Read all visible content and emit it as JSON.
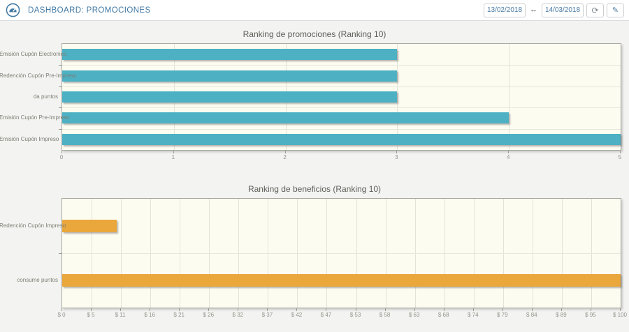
{
  "header": {
    "title": "DASHBOARD: PROMOCIONES",
    "date_from": "13/02/2018",
    "date_to": "14/03/2018",
    "range_arrow_glyph": "↔",
    "refresh_glyph": "⟳",
    "edit_glyph": "✎"
  },
  "colors": {
    "accent_blue": "#4279a3",
    "teal_bar": "#4db1c3",
    "orange_bar": "#e9a73c",
    "plot_background": "#fdfcf1",
    "page_background": "#f3f3f1"
  },
  "chart_data": [
    {
      "type": "bar",
      "orientation": "horizontal",
      "title": "Ranking de promociones (Ranking 10)",
      "categories": [
        "Emisión Cupón Electronico",
        "Redención Cupón Pre-Impreso",
        "da puntos",
        "Emisión Cupón Pre-Impreso",
        "Emisión Cupón Impreso"
      ],
      "values": [
        3,
        3,
        3,
        4,
        5
      ],
      "xlim": [
        0,
        5
      ],
      "xticks": [
        "0",
        "1",
        "2",
        "3",
        "4",
        "5"
      ],
      "grid": true,
      "legend": false,
      "bar_color": "#4db1c3"
    },
    {
      "type": "bar",
      "orientation": "horizontal",
      "title": "Ranking de beneficios (Ranking 10)",
      "categories": [
        "Redención Cupón Impreso",
        "consume puntos"
      ],
      "values": [
        9.7,
        100
      ],
      "xlim": [
        0,
        100
      ],
      "xticks": [
        "$ 0",
        "$ 5",
        "$ 11",
        "$ 16",
        "$ 21",
        "$ 26",
        "$ 32",
        "$ 37",
        "$ 42",
        "$ 47",
        "$ 53",
        "$ 58",
        "$ 63",
        "$ 68",
        "$ 74",
        "$ 79",
        "$ 84",
        "$ 89",
        "$ 95",
        "$ 100"
      ],
      "grid": true,
      "legend": false,
      "bar_color": "#e9a73c"
    }
  ]
}
